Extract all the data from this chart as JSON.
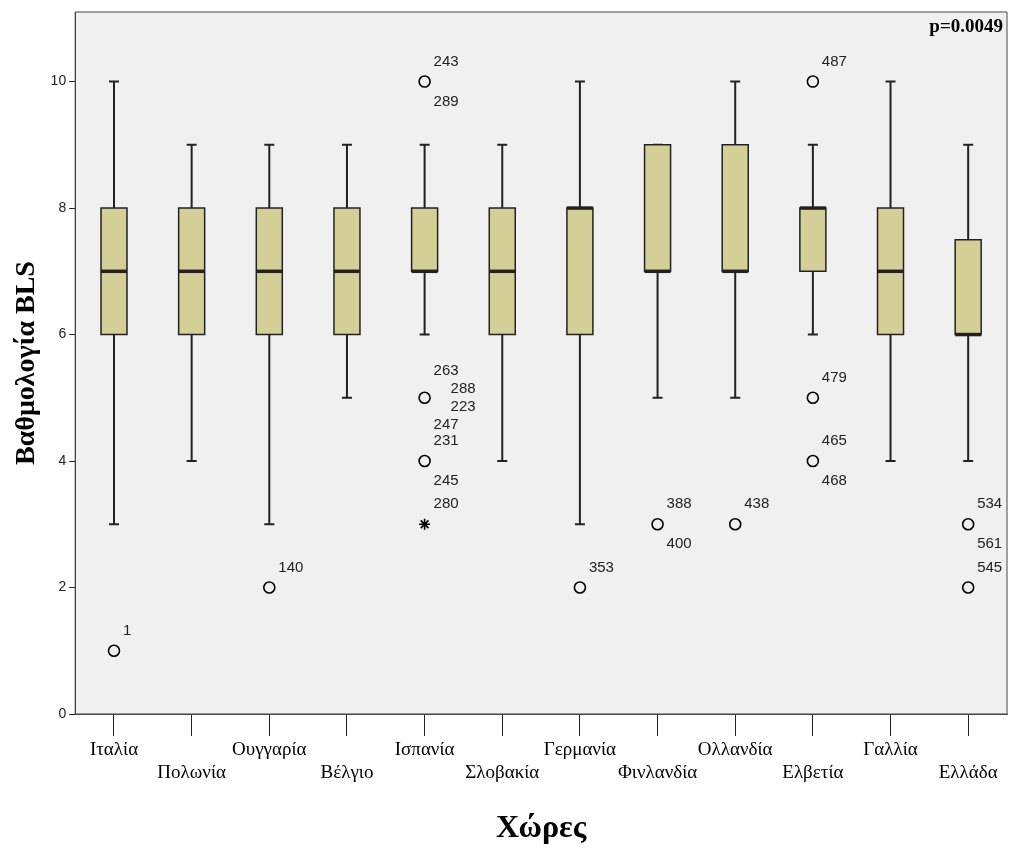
{
  "chart_data": {
    "type": "box",
    "ylabel": "Βαθμολογία BLS",
    "xlabel": "Χώρες",
    "categories": [
      "Ιταλία",
      "Πολωνία",
      "Ουγγαρία",
      "Βέλγιο",
      "Ισπανία",
      "Σλοβακία",
      "Γερμανία",
      "Φινλανδία",
      "Ολλανδία",
      "Ελβετία",
      "Γαλλία",
      "Ελλάδα"
    ],
    "color": "#d4cf96",
    "boxes": [
      {
        "low": 3,
        "q1": 6,
        "median": 7,
        "q3": 8,
        "high": 10
      },
      {
        "low": 4,
        "q1": 6,
        "median": 7,
        "q3": 8,
        "high": 9
      },
      {
        "low": 3,
        "q1": 6,
        "median": 7,
        "q3": 8,
        "high": 9
      },
      {
        "low": 5,
        "q1": 6,
        "median": 7,
        "q3": 8,
        "high": 9
      },
      {
        "low": 6,
        "q1": 7,
        "median": 7,
        "q3": 8,
        "high": 9
      },
      {
        "low": 4,
        "q1": 6,
        "median": 7,
        "q3": 8,
        "high": 9
      },
      {
        "low": 3,
        "q1": 6,
        "median": 8,
        "q3": 8,
        "high": 10
      },
      {
        "low": 5,
        "q1": 7,
        "median": 7,
        "q3": 9,
        "high": 9
      },
      {
        "low": 5,
        "q1": 7,
        "median": 7,
        "q3": 9,
        "high": 10
      },
      {
        "low": 6,
        "q1": 7,
        "median": 8,
        "q3": 8,
        "high": 9
      },
      {
        "low": 4,
        "q1": 6,
        "median": 7,
        "q3": 8,
        "high": 10
      },
      {
        "low": 4,
        "q1": 6,
        "median": 6,
        "q3": 7.5,
        "high": 9
      }
    ],
    "series": [
      {
        "type": "scatter",
        "marker": "circle",
        "color": "#000000",
        "x": [
          "Ιταλία",
          "Ουγγαρία",
          "Ισπανία",
          "Ισπανία",
          "Ισπανία",
          "Γερμανία",
          "Φινλανδία",
          "Ολλανδία",
          "Ελβετία",
          "Ελβετία",
          "Ελβετία",
          "Ελλάδα",
          "Ελλάδα"
        ],
        "values": [
          1,
          2,
          10,
          5,
          4,
          2,
          3,
          3,
          10,
          5,
          4,
          3,
          2
        ]
      },
      {
        "type": "scatter",
        "marker": "cross",
        "color": "#000000",
        "x": [
          "Ισπανία"
        ],
        "values": [
          3
        ]
      }
    ],
    "ylim": [
      0,
      11.1
    ],
    "yticks": [
      0,
      2,
      4,
      6,
      8,
      10
    ],
    "grid": false,
    "legend": false,
    "annotations": [
      "p=0.0049",
      {
        "text": "1",
        "x": "Ιταλία",
        "y": 1
      },
      {
        "text": "140",
        "x": "Ουγγαρία",
        "y": 2
      },
      {
        "text": "243",
        "x": "Ισπανία",
        "y": 10
      },
      {
        "text": "289",
        "x": "Ισπανία",
        "y": 10
      },
      {
        "text": "263",
        "x": "Ισπανία",
        "y": 5
      },
      {
        "text": "288",
        "x": "Ισπανία",
        "y": 5
      },
      {
        "text": "223",
        "x": "Ισπανία",
        "y": 5
      },
      {
        "text": "247",
        "x": "Ισπανία",
        "y": 5
      },
      {
        "text": "231",
        "x": "Ισπανία",
        "y": 4
      },
      {
        "text": "245",
        "x": "Ισπανία",
        "y": 4
      },
      {
        "text": "280",
        "x": "Ισπανία",
        "y": 3
      },
      {
        "text": "353",
        "x": "Γερμανία",
        "y": 2
      },
      {
        "text": "388",
        "x": "Φινλανδία",
        "y": 3
      },
      {
        "text": "400",
        "x": "Φινλανδία",
        "y": 3
      },
      {
        "text": "438",
        "x": "Ολλανδία",
        "y": 3
      },
      {
        "text": "487",
        "x": "Ελβετία",
        "y": 10
      },
      {
        "text": "479",
        "x": "Ελβετία",
        "y": 5
      },
      {
        "text": "465",
        "x": "Ελβετία",
        "y": 4
      },
      {
        "text": "468",
        "x": "Ελβετία",
        "y": 4
      },
      {
        "text": "534",
        "x": "Ελλάδα",
        "y": 3
      },
      {
        "text": "561",
        "x": "Ελλάδα",
        "y": 3
      },
      {
        "text": "545",
        "x": "Ελλάδα",
        "y": 2
      }
    ]
  }
}
